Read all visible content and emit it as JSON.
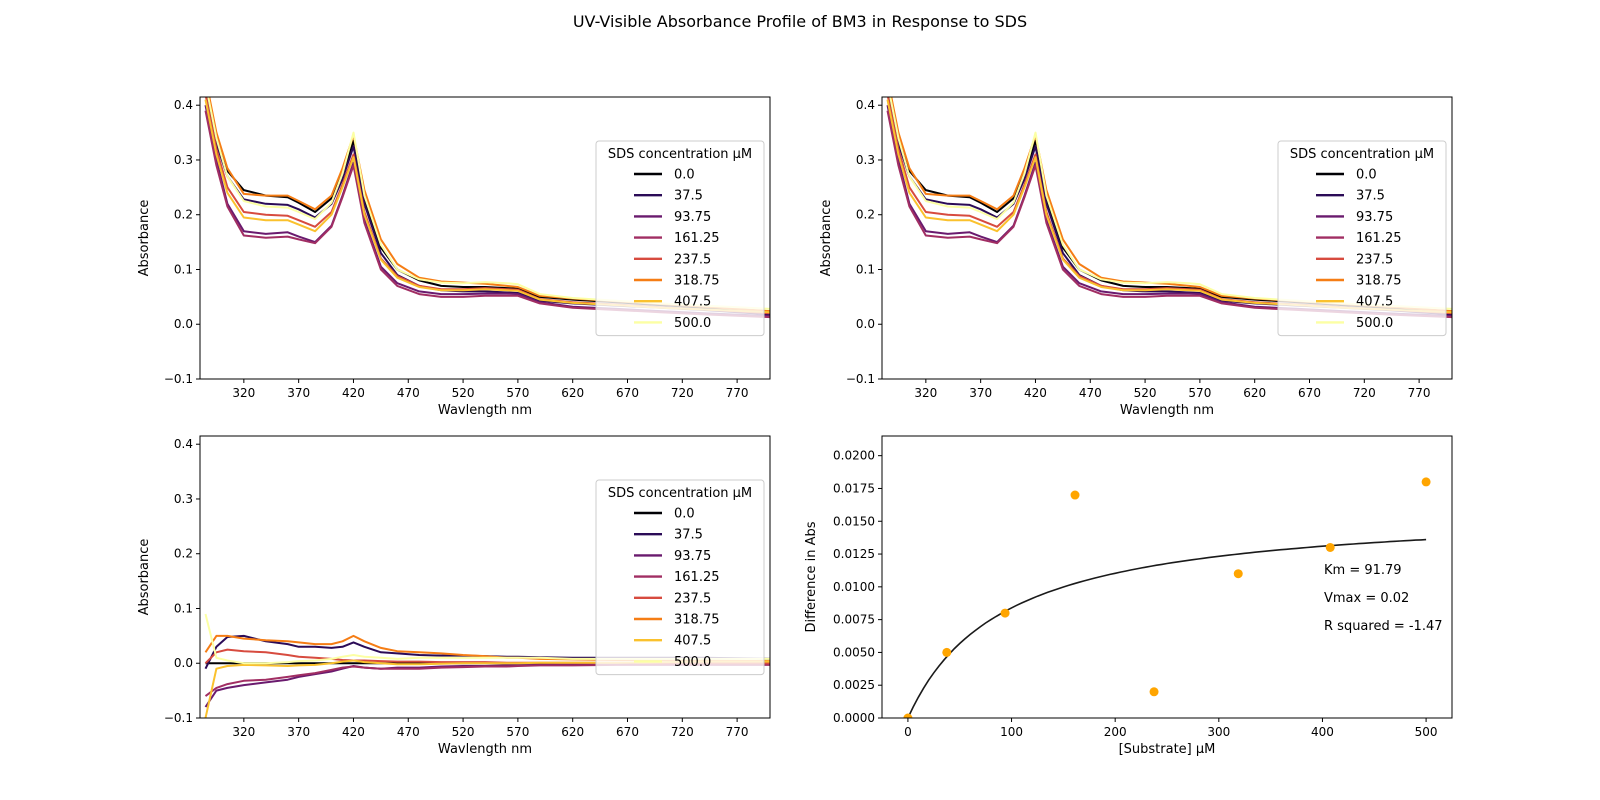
{
  "figure": {
    "title": "UV-Visible Absorbance Profile of BM3 in Response to SDS"
  },
  "colors": {
    "series": [
      "#000004",
      "#2b0b57",
      "#6a1a6e",
      "#a12e63",
      "#d74b3f",
      "#f57d15",
      "#fac12d",
      "#fcffa4"
    ],
    "scatter": "#ffa500",
    "fit": "#1a1a1a"
  },
  "chart_data": [
    {
      "type": "line",
      "panel": "top-left",
      "xlabel": "Wavlength nm",
      "ylabel": "Absorbance",
      "xlim": [
        280,
        800
      ],
      "ylim": [
        -0.1,
        0.415
      ],
      "xticks": [
        320,
        370,
        420,
        470,
        520,
        570,
        620,
        670,
        720,
        770
      ],
      "yticks": [
        -0.1,
        0.0,
        0.1,
        0.2,
        0.3,
        0.4
      ],
      "legend": {
        "title": "SDS concentration µM",
        "position": "right"
      },
      "x": [
        285,
        295,
        305,
        320,
        340,
        360,
        370,
        385,
        400,
        410,
        420,
        430,
        445,
        460,
        480,
        500,
        520,
        540,
        560,
        570,
        590,
        620,
        660,
        700,
        740,
        800
      ],
      "series": [
        {
          "name": "0.0",
          "values": [
            0.44,
            0.34,
            0.28,
            0.245,
            0.235,
            0.232,
            0.222,
            0.205,
            0.23,
            0.275,
            0.335,
            0.23,
            0.14,
            0.1,
            0.08,
            0.07,
            0.068,
            0.068,
            0.066,
            0.065,
            0.05,
            0.045,
            0.04,
            0.035,
            0.03,
            0.02
          ]
        },
        {
          "name": "37.5",
          "values": [
            0.43,
            0.33,
            0.27,
            0.228,
            0.22,
            0.218,
            0.21,
            0.195,
            0.22,
            0.265,
            0.325,
            0.22,
            0.13,
            0.09,
            0.07,
            0.062,
            0.06,
            0.06,
            0.058,
            0.057,
            0.043,
            0.038,
            0.034,
            0.03,
            0.026,
            0.018
          ]
        },
        {
          "name": "93.75",
          "values": [
            0.4,
            0.3,
            0.22,
            0.17,
            0.165,
            0.168,
            0.16,
            0.15,
            0.18,
            0.235,
            0.295,
            0.19,
            0.105,
            0.075,
            0.06,
            0.055,
            0.055,
            0.056,
            0.056,
            0.055,
            0.04,
            0.032,
            0.028,
            0.024,
            0.02,
            0.015
          ]
        },
        {
          "name": "161.25",
          "values": [
            0.39,
            0.29,
            0.215,
            0.162,
            0.158,
            0.16,
            0.155,
            0.148,
            0.178,
            0.232,
            0.29,
            0.185,
            0.1,
            0.07,
            0.055,
            0.05,
            0.05,
            0.052,
            0.052,
            0.052,
            0.038,
            0.03,
            0.026,
            0.022,
            0.018,
            0.013
          ]
        },
        {
          "name": "237.5",
          "values": [
            0.42,
            0.32,
            0.25,
            0.205,
            0.2,
            0.198,
            0.19,
            0.178,
            0.205,
            0.255,
            0.31,
            0.205,
            0.12,
            0.088,
            0.07,
            0.064,
            0.064,
            0.066,
            0.064,
            0.063,
            0.046,
            0.04,
            0.036,
            0.031,
            0.027,
            0.02
          ]
        },
        {
          "name": "318.75",
          "values": [
            0.45,
            0.35,
            0.285,
            0.238,
            0.235,
            0.235,
            0.225,
            0.21,
            0.235,
            0.285,
            0.345,
            0.245,
            0.155,
            0.11,
            0.085,
            0.078,
            0.076,
            0.074,
            0.07,
            0.068,
            0.052,
            0.047,
            0.042,
            0.037,
            0.032,
            0.024
          ]
        },
        {
          "name": "407.5",
          "values": [
            0.41,
            0.31,
            0.24,
            0.195,
            0.19,
            0.19,
            0.182,
            0.17,
            0.2,
            0.25,
            0.305,
            0.2,
            0.118,
            0.085,
            0.068,
            0.062,
            0.062,
            0.064,
            0.062,
            0.061,
            0.045,
            0.039,
            0.035,
            0.03,
            0.027,
            0.022
          ]
        },
        {
          "name": "500.0",
          "values": [
            0.44,
            0.34,
            0.27,
            0.225,
            0.215,
            0.213,
            0.205,
            0.192,
            0.222,
            0.275,
            0.35,
            0.235,
            0.145,
            0.1,
            0.082,
            0.076,
            0.075,
            0.077,
            0.075,
            0.073,
            0.055,
            0.048,
            0.043,
            0.038,
            0.034,
            0.028
          ]
        }
      ]
    },
    {
      "type": "line",
      "panel": "top-right",
      "xlabel": "Wavlength nm",
      "ylabel": "Absorbance",
      "xlim": [
        280,
        800
      ],
      "ylim": [
        -0.1,
        0.415
      ],
      "xticks": [
        320,
        370,
        420,
        470,
        520,
        570,
        620,
        670,
        720,
        770
      ],
      "yticks": [
        -0.1,
        0.0,
        0.1,
        0.2,
        0.3,
        0.4
      ],
      "legend": {
        "title": "SDS concentration µM",
        "position": "right"
      },
      "x": [
        285,
        295,
        305,
        320,
        340,
        360,
        370,
        385,
        400,
        410,
        420,
        430,
        445,
        460,
        480,
        500,
        520,
        540,
        560,
        570,
        590,
        620,
        660,
        700,
        740,
        800
      ],
      "series": [
        {
          "name": "0.0",
          "values": [
            0.44,
            0.34,
            0.28,
            0.245,
            0.235,
            0.232,
            0.222,
            0.205,
            0.23,
            0.275,
            0.335,
            0.23,
            0.14,
            0.1,
            0.08,
            0.07,
            0.068,
            0.068,
            0.066,
            0.065,
            0.05,
            0.045,
            0.04,
            0.035,
            0.03,
            0.02
          ]
        },
        {
          "name": "37.5",
          "values": [
            0.43,
            0.33,
            0.27,
            0.228,
            0.22,
            0.218,
            0.21,
            0.195,
            0.22,
            0.265,
            0.325,
            0.22,
            0.13,
            0.09,
            0.07,
            0.062,
            0.06,
            0.06,
            0.058,
            0.057,
            0.043,
            0.038,
            0.034,
            0.03,
            0.026,
            0.018
          ]
        },
        {
          "name": "93.75",
          "values": [
            0.4,
            0.3,
            0.22,
            0.17,
            0.165,
            0.168,
            0.16,
            0.15,
            0.18,
            0.235,
            0.295,
            0.19,
            0.105,
            0.075,
            0.06,
            0.055,
            0.055,
            0.056,
            0.056,
            0.055,
            0.04,
            0.032,
            0.028,
            0.024,
            0.02,
            0.015
          ]
        },
        {
          "name": "161.25",
          "values": [
            0.39,
            0.29,
            0.215,
            0.162,
            0.158,
            0.16,
            0.155,
            0.148,
            0.178,
            0.232,
            0.29,
            0.185,
            0.1,
            0.07,
            0.055,
            0.05,
            0.05,
            0.052,
            0.052,
            0.052,
            0.038,
            0.03,
            0.026,
            0.022,
            0.018,
            0.013
          ]
        },
        {
          "name": "237.5",
          "values": [
            0.42,
            0.32,
            0.25,
            0.205,
            0.2,
            0.198,
            0.19,
            0.178,
            0.205,
            0.255,
            0.31,
            0.205,
            0.12,
            0.088,
            0.07,
            0.064,
            0.064,
            0.066,
            0.064,
            0.063,
            0.046,
            0.04,
            0.036,
            0.031,
            0.027,
            0.02
          ]
        },
        {
          "name": "318.75",
          "values": [
            0.45,
            0.35,
            0.285,
            0.238,
            0.235,
            0.235,
            0.225,
            0.21,
            0.235,
            0.285,
            0.345,
            0.245,
            0.155,
            0.11,
            0.085,
            0.078,
            0.076,
            0.074,
            0.07,
            0.068,
            0.052,
            0.047,
            0.042,
            0.037,
            0.032,
            0.024
          ]
        },
        {
          "name": "407.5",
          "values": [
            0.41,
            0.31,
            0.24,
            0.195,
            0.19,
            0.19,
            0.182,
            0.17,
            0.2,
            0.25,
            0.305,
            0.2,
            0.118,
            0.085,
            0.068,
            0.062,
            0.062,
            0.064,
            0.062,
            0.061,
            0.045,
            0.039,
            0.035,
            0.03,
            0.027,
            0.022
          ]
        },
        {
          "name": "500.0",
          "values": [
            0.44,
            0.34,
            0.27,
            0.225,
            0.215,
            0.213,
            0.205,
            0.192,
            0.222,
            0.275,
            0.35,
            0.235,
            0.145,
            0.1,
            0.082,
            0.076,
            0.075,
            0.077,
            0.075,
            0.073,
            0.055,
            0.048,
            0.043,
            0.038,
            0.034,
            0.028
          ]
        }
      ]
    },
    {
      "type": "line",
      "panel": "bottom-left",
      "xlabel": "Wavlength nm",
      "ylabel": "Absorbance",
      "xlim": [
        280,
        800
      ],
      "ylim": [
        -0.1,
        0.415
      ],
      "xticks": [
        320,
        370,
        420,
        470,
        520,
        570,
        620,
        670,
        720,
        770
      ],
      "yticks": [
        -0.1,
        0.0,
        0.1,
        0.2,
        0.3,
        0.4
      ],
      "legend": {
        "title": "SDS concentration µM",
        "position": "right"
      },
      "x": [
        285,
        295,
        305,
        320,
        340,
        360,
        370,
        385,
        400,
        410,
        420,
        430,
        445,
        460,
        480,
        500,
        520,
        540,
        560,
        570,
        590,
        620,
        660,
        700,
        740,
        800
      ],
      "series": [
        {
          "name": "0.0",
          "values": [
            0,
            0,
            0,
            0,
            0,
            0,
            0,
            0,
            0,
            0,
            0,
            0,
            0,
            0,
            0,
            0,
            0,
            0,
            0,
            0,
            0,
            0,
            0,
            0,
            0,
            0
          ]
        },
        {
          "name": "37.5",
          "values": [
            -0.01,
            0.03,
            0.048,
            0.05,
            0.04,
            0.035,
            0.03,
            0.03,
            0.028,
            0.03,
            0.038,
            0.03,
            0.02,
            0.018,
            0.015,
            0.014,
            0.014,
            0.013,
            0.012,
            0.012,
            0.011,
            0.01,
            0.01,
            0.01,
            0.01,
            0.008
          ]
        },
        {
          "name": "93.75",
          "values": [
            -0.08,
            -0.05,
            -0.045,
            -0.04,
            -0.035,
            -0.03,
            -0.025,
            -0.02,
            -0.015,
            -0.01,
            -0.005,
            -0.008,
            -0.01,
            -0.008,
            -0.008,
            -0.006,
            -0.005,
            -0.005,
            -0.004,
            -0.004,
            -0.003,
            -0.002,
            -0.002,
            -0.002,
            -0.002,
            -0.002
          ]
        },
        {
          "name": "161.25",
          "values": [
            -0.06,
            -0.045,
            -0.038,
            -0.032,
            -0.03,
            -0.025,
            -0.022,
            -0.018,
            -0.012,
            -0.008,
            -0.006,
            -0.008,
            -0.01,
            -0.01,
            -0.01,
            -0.008,
            -0.007,
            -0.006,
            -0.006,
            -0.005,
            -0.004,
            -0.004,
            -0.003,
            -0.003,
            -0.003,
            -0.003
          ]
        },
        {
          "name": "237.5",
          "values": [
            0.0,
            0.02,
            0.025,
            0.022,
            0.02,
            0.015,
            0.012,
            0.01,
            0.008,
            0.006,
            0.005,
            0.005,
            0.004,
            0.003,
            0.003,
            0.002,
            0.002,
            0.002,
            0.001,
            0.001,
            0.001,
            0.001,
            0.001,
            0.0,
            0.0,
            0.0
          ]
        },
        {
          "name": "318.75",
          "values": [
            0.02,
            0.05,
            0.05,
            0.045,
            0.042,
            0.04,
            0.038,
            0.035,
            0.035,
            0.04,
            0.05,
            0.04,
            0.028,
            0.022,
            0.02,
            0.018,
            0.015,
            0.013,
            0.01,
            0.01,
            0.008,
            0.007,
            0.006,
            0.006,
            0.005,
            0.004
          ]
        },
        {
          "name": "407.5",
          "values": [
            -0.1,
            -0.01,
            -0.005,
            -0.003,
            -0.004,
            -0.005,
            -0.004,
            -0.003,
            0.0,
            0.003,
            0.005,
            0.002,
            0.0,
            -0.002,
            -0.002,
            -0.001,
            0.0,
            0.0,
            0.0,
            0.0,
            0.001,
            0.001,
            0.001,
            0.002,
            0.003,
            0.003
          ]
        },
        {
          "name": "500.0",
          "values": [
            0.09,
            0.01,
            0.005,
            0.0,
            0.0,
            0.002,
            0.004,
            0.005,
            0.008,
            0.012,
            0.015,
            0.012,
            0.01,
            0.008,
            0.01,
            0.01,
            0.01,
            0.01,
            0.01,
            0.01,
            0.01,
            0.008,
            0.008,
            0.008,
            0.008,
            0.008
          ]
        }
      ]
    },
    {
      "type": "scatter",
      "panel": "bottom-right",
      "xlabel": "[Substrate] µM",
      "ylabel": "Difference in Abs",
      "xlim": [
        -25,
        525
      ],
      "ylim": [
        0,
        0.0215
      ],
      "xticks": [
        0,
        100,
        200,
        300,
        400,
        500
      ],
      "yticks": [
        0.0,
        0.0025,
        0.005,
        0.0075,
        0.01,
        0.0125,
        0.015,
        0.0175,
        0.02
      ],
      "ytick_labels": [
        "0.0000",
        "0.0025",
        "0.0050",
        "0.0075",
        "0.0100",
        "0.0125",
        "0.0150",
        "0.0175",
        "0.0200"
      ],
      "points": {
        "x": [
          0.0,
          37.5,
          93.75,
          161.25,
          237.5,
          318.75,
          407.5,
          500.0
        ],
        "y": [
          0.0,
          0.005,
          0.008,
          0.017,
          0.002,
          0.011,
          0.013,
          0.018
        ]
      },
      "fit": {
        "model": "michaelis-menten",
        "km": 91.79,
        "vmax": 0.0161,
        "x_range": [
          0,
          500
        ]
      },
      "annotations": [
        "Km = 91.79",
        "Vmax = 0.02",
        "R squared = -1.47"
      ]
    }
  ]
}
